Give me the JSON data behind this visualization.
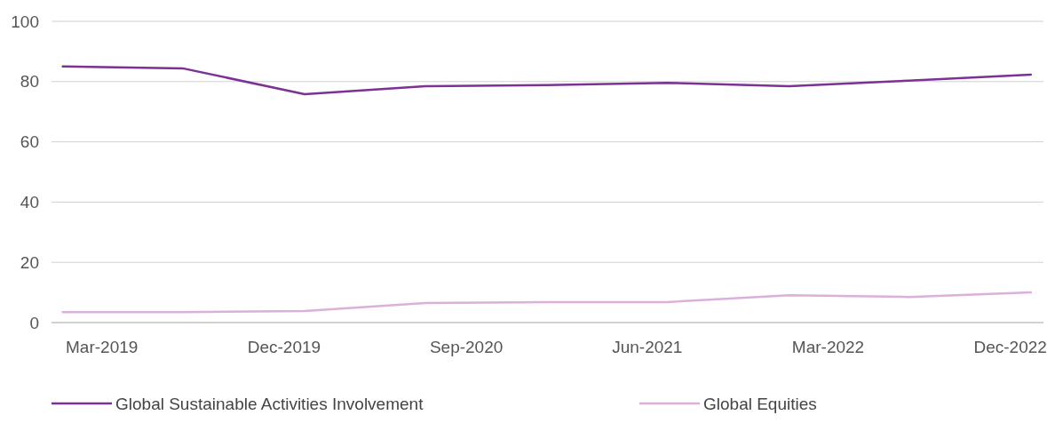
{
  "chart_data": {
    "type": "line",
    "x": [
      "2019-01",
      "2019-07",
      "2020-01",
      "2020-07",
      "2021-01",
      "2021-07",
      "2022-01",
      "2022-07",
      "2023-01"
    ],
    "series": [
      {
        "name": "Global Sustainable Activities Involvement",
        "color": "#7b3294",
        "values": [
          85.0,
          84.4,
          75.8,
          78.5,
          78.8,
          79.6,
          78.5,
          80.3,
          82.3
        ]
      },
      {
        "name": "Global Equities",
        "color": "#dcb0da",
        "values": [
          3.5,
          3.5,
          3.8,
          6.5,
          6.8,
          6.8,
          9.1,
          8.5,
          10.0
        ]
      }
    ],
    "xlim": [
      "2018-12-15",
      "2023-01-20"
    ],
    "xticks": [
      {
        "value": "2019-03",
        "label": "Mar-2019"
      },
      {
        "value": "2019-12",
        "label": "Dec-2019"
      },
      {
        "value": "2020-09",
        "label": "Sep-2020"
      },
      {
        "value": "2021-06",
        "label": "Jun-2021"
      },
      {
        "value": "2022-03",
        "label": "Mar-2022"
      },
      {
        "value": "2022-12",
        "label": "Dec-2022"
      }
    ],
    "ylim": [
      0,
      100
    ],
    "yticks": [
      0,
      20,
      40,
      60,
      80,
      100
    ],
    "grid": "y",
    "legend": "bottom",
    "marker": "none",
    "line_style": "solid"
  }
}
